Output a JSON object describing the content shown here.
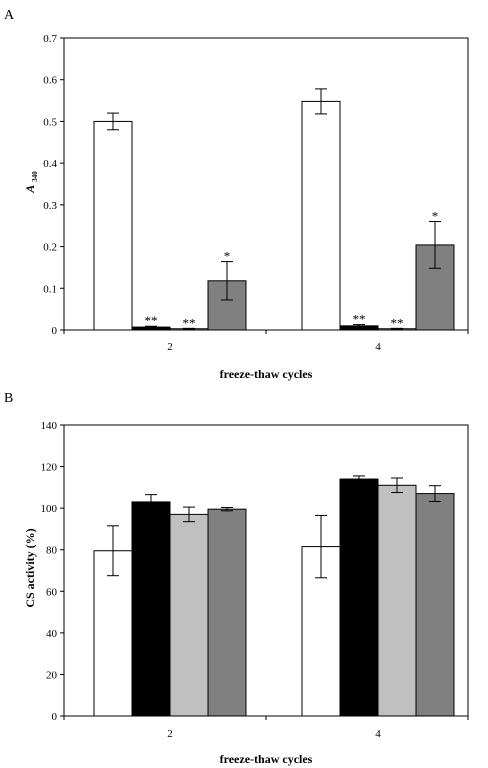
{
  "chart_data": [
    {
      "panel": "A",
      "type": "bar",
      "ylabel": "A",
      "ylabel_subscript": "340",
      "xlabel": "freeze-thaw cycles",
      "categories": [
        "2",
        "4"
      ],
      "ylim": [
        0,
        0.7
      ],
      "yticks": [
        "0",
        "0.1",
        "0.2",
        "0.3",
        "0.4",
        "0.5",
        "0.6",
        "0.7"
      ],
      "grid": false,
      "series": [
        {
          "color": "#ffffff",
          "values": [
            0.5,
            0.548
          ],
          "errors": [
            0.02,
            0.03
          ],
          "annotations": [
            "",
            ""
          ]
        },
        {
          "color": "#000000",
          "values": [
            0.007,
            0.01
          ],
          "errors": [
            0.002,
            0.003
          ],
          "annotations": [
            "**",
            "**"
          ]
        },
        {
          "color": "#c0c0c0",
          "values": [
            0.003,
            0.003
          ],
          "errors": [
            0.001,
            0.001
          ],
          "annotations": [
            "**",
            "**"
          ]
        },
        {
          "color": "#808080",
          "values": [
            0.118,
            0.204
          ],
          "errors": [
            0.046,
            0.056
          ],
          "annotations": [
            "*",
            "*"
          ]
        }
      ]
    },
    {
      "panel": "B",
      "type": "bar",
      "ylabel": "CS activity (%)",
      "xlabel": "freeze-thaw cycles",
      "categories": [
        "2",
        "4"
      ],
      "ylim": [
        0,
        140
      ],
      "yticks": [
        "0",
        "20",
        "40",
        "60",
        "80",
        "100",
        "120",
        "140"
      ],
      "grid": false,
      "series": [
        {
          "color": "#ffffff",
          "values": [
            79.5,
            81.5
          ],
          "errors": [
            12,
            15
          ],
          "annotations": [
            "",
            ""
          ]
        },
        {
          "color": "#000000",
          "values": [
            103,
            114
          ],
          "errors": [
            3.5,
            1.5
          ],
          "annotations": [
            "",
            ""
          ]
        },
        {
          "color": "#c0c0c0",
          "values": [
            97,
            111
          ],
          "errors": [
            3.5,
            3.5
          ],
          "annotations": [
            "",
            ""
          ]
        },
        {
          "color": "#808080",
          "values": [
            99.5,
            107
          ],
          "errors": [
            0.8,
            3.8
          ],
          "annotations": [
            "",
            ""
          ]
        }
      ]
    }
  ]
}
